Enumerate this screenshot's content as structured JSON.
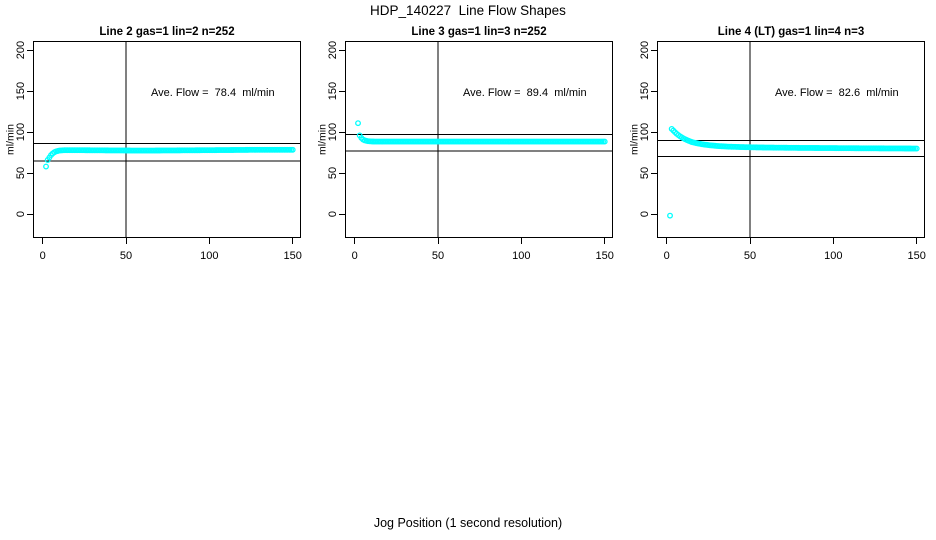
{
  "figure": {
    "title": "HDP_140227  Line Flow Shapes",
    "x_axis_label": "Jog Position (1 second resolution)",
    "background_color": "#ffffff",
    "point_color": "#00ffff",
    "line_color": "#000000"
  },
  "chart_data": [
    {
      "type": "scatter",
      "title": "Line 2 gas=1 lin=2 n=252",
      "ylabel": "ml/min",
      "annotation": "Ave. Flow =  78.4  ml/min",
      "ave_flow_ml_min": 78.4,
      "n": 252,
      "x_ticks": [
        0,
        50,
        100,
        150
      ],
      "y_ticks": [
        0,
        50,
        100,
        150,
        200
      ],
      "xlim": [
        -5,
        154
      ],
      "ylim": [
        -28,
        210
      ],
      "grid": false,
      "vline_x": 50,
      "hlines": [
        86,
        65
      ],
      "marker": "open-circle",
      "point_spacing_x": 1,
      "outliers": [
        [
          2,
          58
        ]
      ],
      "keypoints": [
        [
          3,
          66
        ],
        [
          4,
          69
        ],
        [
          5,
          72
        ],
        [
          6,
          74
        ],
        [
          7,
          75.5
        ],
        [
          8,
          76.5
        ],
        [
          10,
          77.5
        ],
        [
          13,
          78
        ],
        [
          20,
          78
        ],
        [
          60,
          77.5
        ],
        [
          100,
          78
        ],
        [
          130,
          78.5
        ],
        [
          150,
          78.5
        ]
      ]
    },
    {
      "type": "scatter",
      "title": "Line 3 gas=1 lin=3 n=252",
      "ylabel": "ml/min",
      "annotation": "Ave. Flow =  89.4  ml/min",
      "ave_flow_ml_min": 89.4,
      "n": 252,
      "x_ticks": [
        0,
        50,
        100,
        150
      ],
      "y_ticks": [
        0,
        50,
        100,
        150,
        200
      ],
      "xlim": [
        -5,
        154
      ],
      "ylim": [
        -28,
        210
      ],
      "grid": false,
      "vline_x": 50,
      "hlines": [
        97,
        77
      ],
      "marker": "open-circle",
      "point_spacing_x": 1,
      "outliers": [
        [
          2,
          111
        ]
      ],
      "keypoints": [
        [
          3,
          96
        ],
        [
          4,
          93
        ],
        [
          5,
          91
        ],
        [
          6,
          90
        ],
        [
          8,
          89
        ],
        [
          12,
          88.5
        ],
        [
          60,
          88.5
        ],
        [
          100,
          88.5
        ],
        [
          150,
          88.5
        ]
      ]
    },
    {
      "type": "scatter",
      "title": "Line 4 (LT) gas=1 lin=4 n=3",
      "ylabel": "ml/min",
      "annotation": "Ave. Flow =  82.6  ml/min",
      "ave_flow_ml_min": 82.6,
      "n": 3,
      "x_ticks": [
        0,
        50,
        100,
        150
      ],
      "y_ticks": [
        0,
        50,
        100,
        150,
        200
      ],
      "xlim": [
        -5,
        154
      ],
      "ylim": [
        -28,
        210
      ],
      "grid": false,
      "vline_x": 50,
      "hlines": [
        90,
        70
      ],
      "marker": "open-circle",
      "point_spacing_x": 1,
      "outliers": [
        [
          2,
          -2
        ]
      ],
      "keypoints": [
        [
          3,
          104
        ],
        [
          4,
          102
        ],
        [
          5,
          100
        ],
        [
          6,
          98
        ],
        [
          8,
          95
        ],
        [
          10,
          92.5
        ],
        [
          12,
          90.5
        ],
        [
          15,
          88
        ],
        [
          18,
          86.5
        ],
        [
          22,
          85
        ],
        [
          26,
          84
        ],
        [
          30,
          83.2
        ],
        [
          36,
          82.4
        ],
        [
          45,
          81.8
        ],
        [
          60,
          81.2
        ],
        [
          80,
          80.8
        ],
        [
          110,
          80.4
        ],
        [
          150,
          80
        ]
      ]
    }
  ]
}
